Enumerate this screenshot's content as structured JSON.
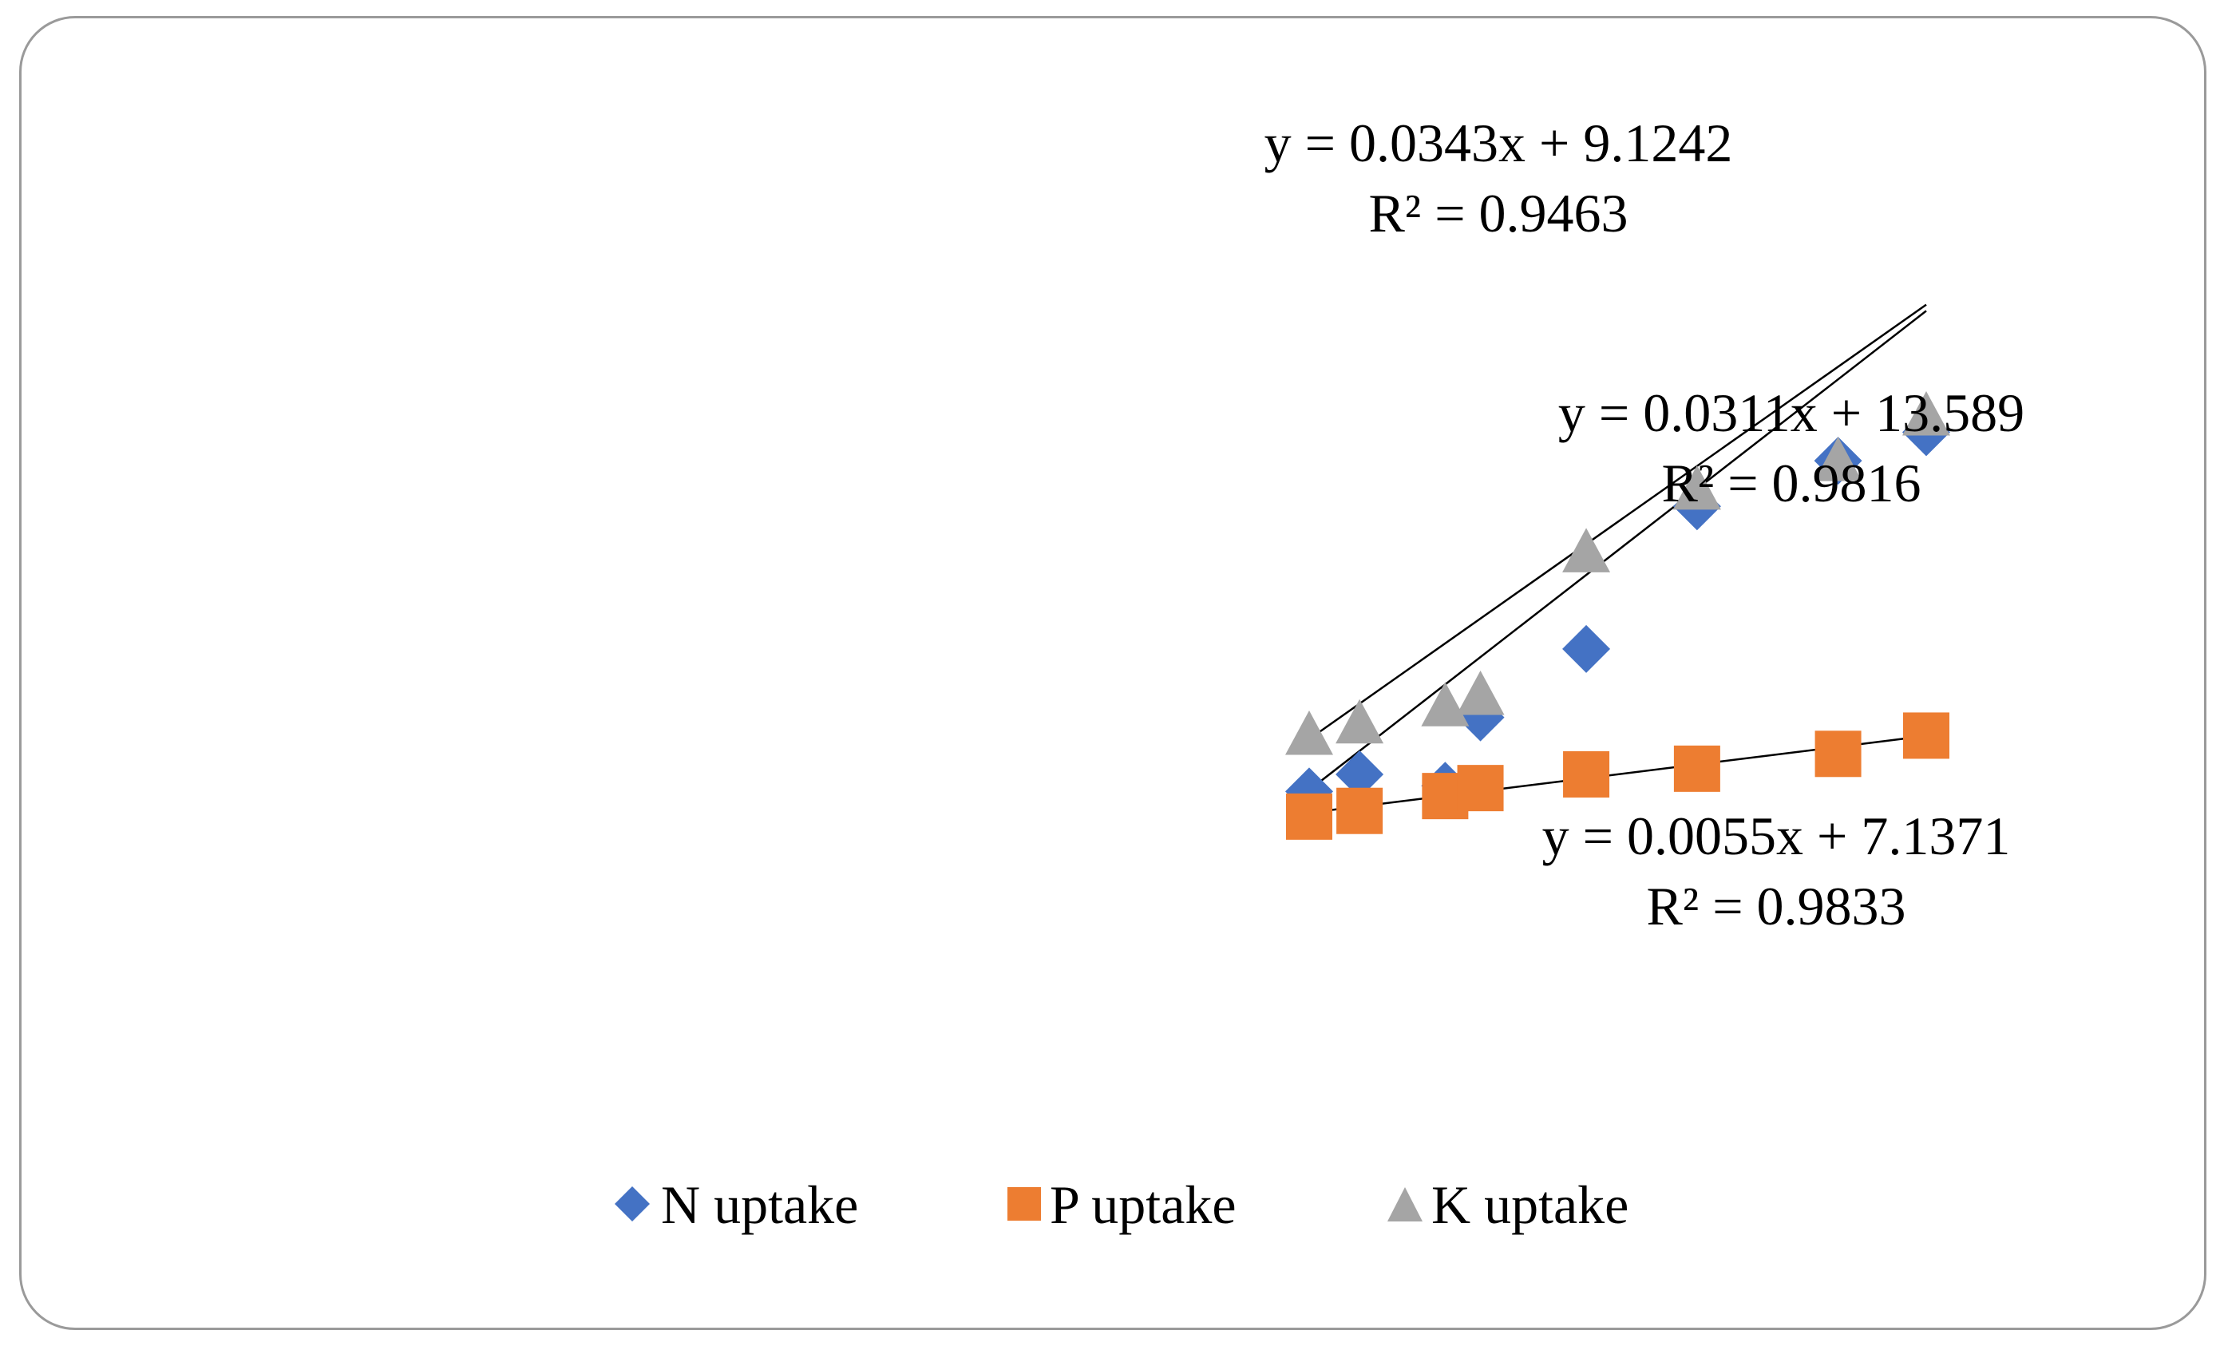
{
  "chart_data": {
    "type": "scatter",
    "title": "",
    "xlabel": "",
    "ylabel": "",
    "x": [
      0,
      100,
      270,
      340,
      550,
      770,
      1050,
      1225
    ],
    "xlim": [
      0,
      1225
    ],
    "ylim": [
      0,
      70
    ],
    "series": [
      {
        "name": "N uptake",
        "color": "#4472C4",
        "marker": "diamond",
        "values": [
          9,
          10.5,
          9.5,
          15.5,
          21.5,
          34,
          38,
          40.5
        ],
        "trendline": {
          "slope": 0.0343,
          "intercept": 9.1242,
          "equation": "y = 0.0343x + 9.1242",
          "r2": "R² = 0.9463"
        }
      },
      {
        "name": "P uptake",
        "color": "#ED7D31",
        "marker": "square",
        "values": [
          6.8,
          7.3,
          8.6,
          9.3,
          10.5,
          11.0,
          12.3,
          13.9
        ],
        "trendline": {
          "slope": 0.0055,
          "intercept": 7.1371,
          "equation": "y = 0.0055x + 7.1371",
          "r2": "R² = 0.9833"
        }
      },
      {
        "name": "K uptake",
        "color": "#A5A5A5",
        "marker": "triangle",
        "values": [
          14,
          15,
          16.5,
          17.5,
          30,
          35.5,
          38,
          42
        ],
        "trendline": {
          "slope": 0.0311,
          "intercept": 13.589,
          "equation": "y = 0.0311x + 13.589",
          "r2": "R² = 0.9816"
        }
      }
    ],
    "legend": {
      "position": "bottom",
      "entries": [
        "N uptake",
        "P uptake",
        "K uptake"
      ]
    },
    "grid": false
  }
}
